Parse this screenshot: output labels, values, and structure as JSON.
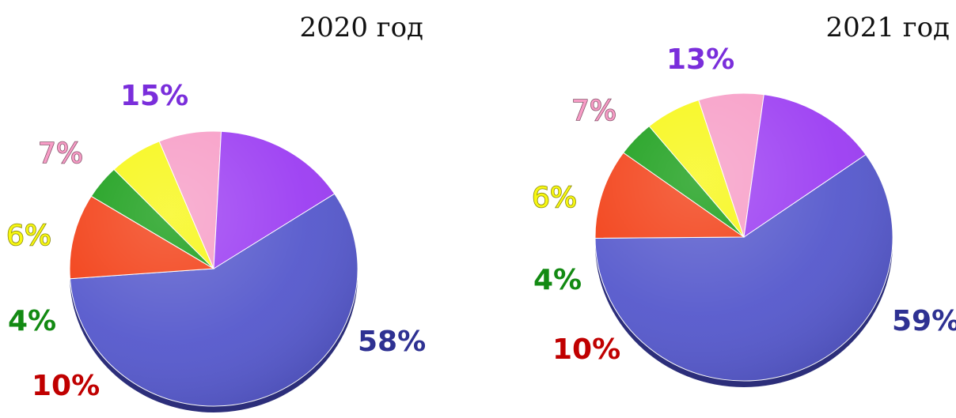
{
  "chart_data": [
    {
      "type": "pie",
      "title": "2020 год",
      "slices": [
        {
          "value": 58,
          "label": "58%",
          "color": "#5558cc",
          "label_color": "#2e3192"
        },
        {
          "value": 10,
          "label": "10%",
          "color": "#f23c12",
          "label_color": "#c00000"
        },
        {
          "value": 4,
          "label": "4%",
          "color": "#149c14",
          "label_color": "#138a13"
        },
        {
          "value": 6,
          "label": "6%",
          "color": "#f7f712",
          "label_color": "#f7f712"
        },
        {
          "value": 7,
          "label": "7%",
          "color": "#f79cc6",
          "label_color": "#f79cc6"
        },
        {
          "value": 15,
          "label": "15%",
          "color": "#9b3cf2",
          "label_color": "#7a2edb"
        }
      ]
    },
    {
      "type": "pie",
      "title": "2021 год",
      "slices": [
        {
          "value": 59,
          "label": "59%",
          "color": "#5558cc",
          "label_color": "#2e3192"
        },
        {
          "value": 10,
          "label": "10%",
          "color": "#f23c12",
          "label_color": "#c00000"
        },
        {
          "value": 4,
          "label": "4%",
          "color": "#149c14",
          "label_color": "#138a13"
        },
        {
          "value": 6,
          "label": "6%",
          "color": "#f7f712",
          "label_color": "#f7f712"
        },
        {
          "value": 7,
          "label": "7%",
          "color": "#f79cc6",
          "label_color": "#f79cc6"
        },
        {
          "value": 13,
          "label": "13%",
          "color": "#9b3cf2",
          "label_color": "#7a2edb"
        }
      ]
    }
  ]
}
